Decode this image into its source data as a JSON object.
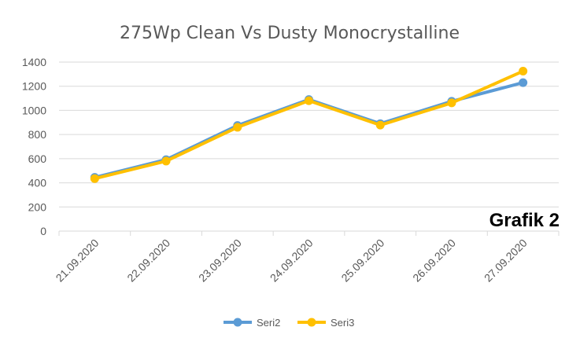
{
  "chart_data": {
    "type": "line",
    "title": "275Wp Clean Vs Dusty Monocrystalline",
    "categories": [
      "21.09.2020",
      "22.09.2020",
      "23.09.2020",
      "24.09.2020",
      "25.09.2020",
      "26.09.2020",
      "27.09.2020"
    ],
    "series": [
      {
        "name": "Seri2",
        "color": "#5b9bd5",
        "values": [
          445,
          592,
          875,
          1090,
          890,
          1075,
          1230
        ]
      },
      {
        "name": "Seri3",
        "color": "#ffc000",
        "values": [
          435,
          580,
          860,
          1080,
          878,
          1062,
          1325
        ]
      }
    ],
    "ylim": [
      0,
      1400
    ],
    "yticks": [
      0,
      200,
      400,
      600,
      800,
      1000,
      1200,
      1400
    ],
    "grid": true,
    "legend": "bottom",
    "annotation": "Grafik 2"
  }
}
